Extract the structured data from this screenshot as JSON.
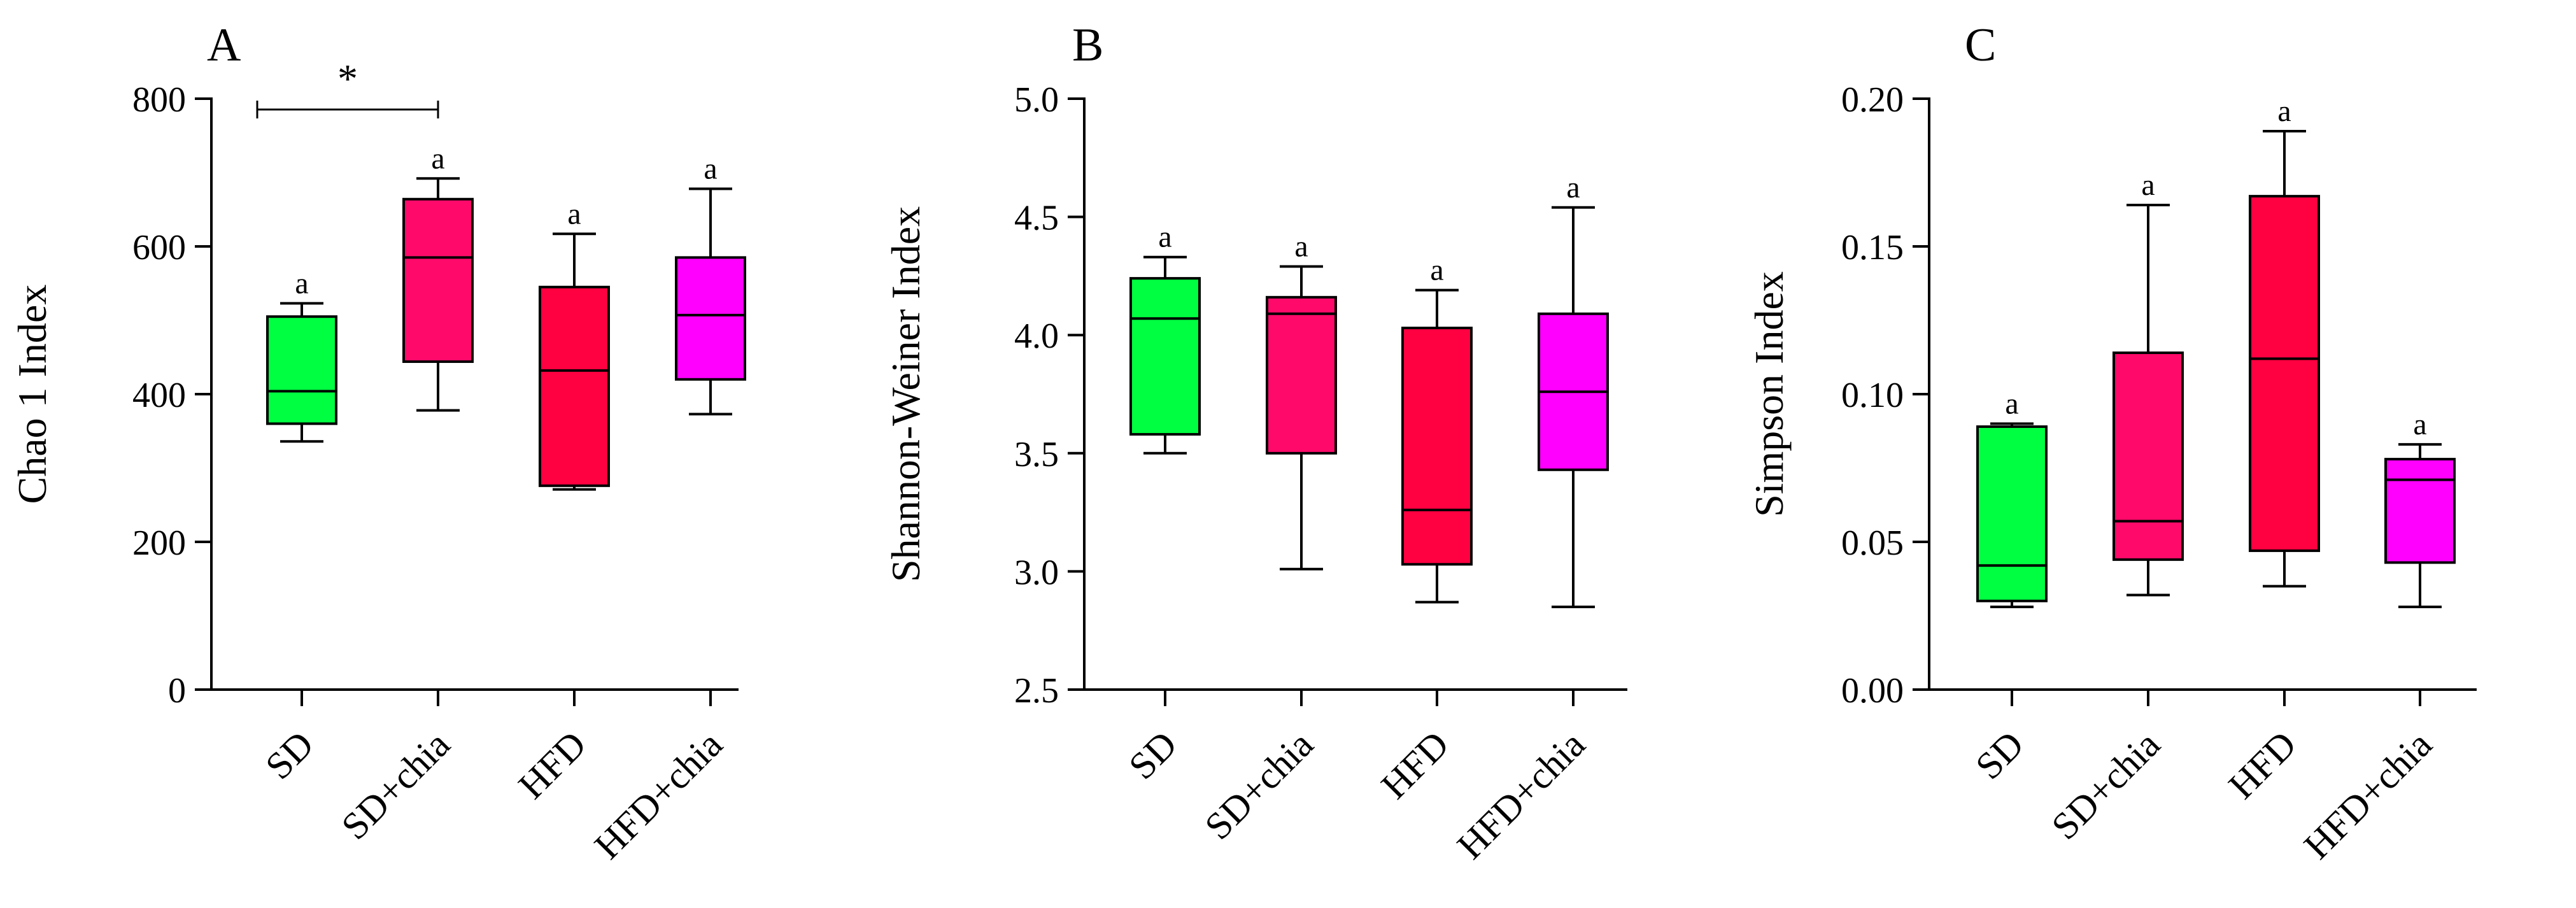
{
  "colors": {
    "SD": "#00ff40",
    "SD+chia": "#ff0a6a",
    "HFD": "#ff0040",
    "HFD+chia": "#ff00ff",
    "stroke": "#000000"
  },
  "chart_data": [
    {
      "type": "boxplot",
      "panel": "A",
      "ylabel": "Chao 1 Index",
      "ylim": [
        0,
        800
      ],
      "yticks": [
        0,
        200,
        400,
        600,
        800
      ],
      "ytick_labels": [
        "0",
        "200",
        "400",
        "600",
        "800"
      ],
      "categories": [
        "SD",
        "SD+chia",
        "HFD",
        "HFD+chia"
      ],
      "boxes": [
        {
          "name": "SD",
          "min": 336,
          "q1": 360,
          "median": 404,
          "q3": 505,
          "max": 523,
          "label": "a"
        },
        {
          "name": "SD+chia",
          "min": 378,
          "q1": 444,
          "median": 585,
          "q3": 664,
          "max": 692,
          "label": "a"
        },
        {
          "name": "HFD",
          "min": 271,
          "q1": 276,
          "median": 432,
          "q3": 545,
          "max": 617,
          "label": "a"
        },
        {
          "name": "HFD+chia",
          "min": 373,
          "q1": 420,
          "median": 507,
          "q3": 585,
          "max": 678,
          "label": "a"
        }
      ],
      "annotation": {
        "text": "*",
        "from": "SD",
        "to": "SD+chia",
        "y": 784
      }
    },
    {
      "type": "boxplot",
      "panel": "B",
      "ylabel": "Shannon-Weiner Index",
      "ylim": [
        2.5,
        5.0
      ],
      "yticks": [
        2.5,
        3.0,
        3.5,
        4.0,
        4.5,
        5.0
      ],
      "ytick_labels": [
        "2.5",
        "3.0",
        "3.5",
        "4.0",
        "4.5",
        "5.0"
      ],
      "categories": [
        "SD",
        "SD+chia",
        "HFD",
        "HFD+chia"
      ],
      "boxes": [
        {
          "name": "SD",
          "min": 3.5,
          "q1": 3.58,
          "median": 4.07,
          "q3": 4.24,
          "max": 4.33,
          "label": "a"
        },
        {
          "name": "SD+chia",
          "min": 3.01,
          "q1": 3.5,
          "median": 4.09,
          "q3": 4.16,
          "max": 4.29,
          "label": "a"
        },
        {
          "name": "HFD",
          "min": 2.87,
          "q1": 3.03,
          "median": 3.26,
          "q3": 4.03,
          "max": 4.19,
          "label": "a"
        },
        {
          "name": "HFD+chia",
          "min": 2.85,
          "q1": 3.43,
          "median": 3.76,
          "q3": 4.09,
          "max": 4.54,
          "label": "a"
        }
      ]
    },
    {
      "type": "boxplot",
      "panel": "C",
      "ylabel": "Simpson Index",
      "ylim": [
        0.0,
        0.2
      ],
      "yticks": [
        0.0,
        0.05,
        0.1,
        0.15,
        0.2
      ],
      "ytick_labels": [
        "0.00",
        "0.05",
        "0.10",
        "0.15",
        "0.20"
      ],
      "categories": [
        "SD",
        "SD+chia",
        "HFD",
        "HFD+chia"
      ],
      "boxes": [
        {
          "name": "SD",
          "min": 0.028,
          "q1": 0.03,
          "median": 0.042,
          "q3": 0.089,
          "max": 0.09,
          "label": "a"
        },
        {
          "name": "SD+chia",
          "min": 0.032,
          "q1": 0.044,
          "median": 0.057,
          "q3": 0.114,
          "max": 0.164,
          "label": "a"
        },
        {
          "name": "HFD",
          "min": 0.035,
          "q1": 0.047,
          "median": 0.112,
          "q3": 0.167,
          "max": 0.189,
          "label": "a"
        },
        {
          "name": "HFD+chia",
          "min": 0.028,
          "q1": 0.043,
          "median": 0.071,
          "q3": 0.078,
          "max": 0.083,
          "label": "a"
        }
      ]
    }
  ]
}
